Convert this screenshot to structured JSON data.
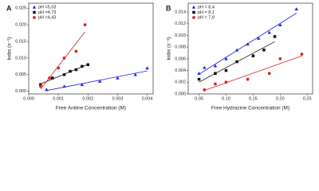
{
  "chart_data": [
    {
      "type": "scatter",
      "panel_label": "A",
      "x_label": "Free Aniline Concentration (M)",
      "y_label": "kobs (s⁻¹)",
      "xlim": [
        0,
        0.0042
      ],
      "ylim": [
        -0.0008,
        0.0265
      ],
      "xticks": [
        {
          "value": 0,
          "label": "0.000"
        },
        0.001,
        0.002,
        0.003,
        0.004
      ],
      "yticks": [
        {
          "value": 0,
          "label": "0.000"
        },
        0.005,
        {
          "value": 0.01,
          "label": "0.010"
        },
        0.015,
        {
          "value": 0.02,
          "label": "0.020"
        },
        0.025
      ],
      "series": [
        {
          "name": "pH =5,03",
          "color": "#2222dd",
          "marker": "triangle",
          "x": [
            0.0006,
            0.0012,
            0.0018,
            0.0024,
            0.003,
            0.0036,
            0.004
          ],
          "values": [
            0.0005,
            0.0015,
            0.002,
            0.003,
            0.004,
            0.005,
            0.007
          ]
        },
        {
          "name": "pH =4,73",
          "color": "#111111",
          "marker": "square",
          "x": [
            0.0004,
            0.0008,
            0.0012,
            0.0014,
            0.0016,
            0.0018,
            0.002
          ],
          "values": [
            0.002,
            0.004,
            0.005,
            0.006,
            0.0065,
            0.0075,
            0.008
          ]
        },
        {
          "name": "pH =4,43",
          "color": "#e02020",
          "marker": "circle",
          "x": [
            0.0004,
            0.0007,
            0.001,
            0.0012,
            0.0016,
            0.0019
          ],
          "values": [
            0.0015,
            0.004,
            0.007,
            0.01,
            0.012,
            0.02
          ]
        }
      ]
    },
    {
      "type": "scatter",
      "panel_label": "B",
      "x_label": "Free Hydrazine Concentration (M)",
      "y_label": "kobs (s⁻¹)",
      "xlim": [
        0.03,
        0.26
      ],
      "ylim": [
        0,
        0.0155
      ],
      "xticks": [
        0.05,
        {
          "value": 0.1,
          "label": "0.10"
        },
        0.15,
        {
          "value": 0.2,
          "label": "0.20"
        },
        0.25
      ],
      "yticks": [
        {
          "value": 0,
          "label": "0.000"
        },
        0.002,
        0.004,
        0.006,
        0.008,
        {
          "value": 0.01,
          "label": "0.010"
        },
        0.012,
        0.014
      ],
      "series": [
        {
          "name": "pH = 8,4",
          "color": "#2222dd",
          "marker": "triangle",
          "x": [
            0.05,
            0.06,
            0.08,
            0.1,
            0.12,
            0.14,
            0.16,
            0.18,
            0.2,
            0.23
          ],
          "values": [
            0.0035,
            0.0045,
            0.0048,
            0.006,
            0.0075,
            0.0085,
            0.0095,
            0.0105,
            0.0118,
            0.0145
          ]
        },
        {
          "name": "pH = 8,1",
          "color": "#111111",
          "marker": "square",
          "x": [
            0.05,
            0.08,
            0.1,
            0.12,
            0.15,
            0.17,
            0.19
          ],
          "values": [
            0.0025,
            0.0035,
            0.004,
            0.0055,
            0.0065,
            0.0075,
            0.0098
          ]
        },
        {
          "name": "pH = 7,8",
          "color": "#e02020",
          "marker": "circle",
          "x": [
            0.06,
            0.08,
            0.1,
            0.14,
            0.18,
            0.2,
            0.24
          ],
          "values": [
            0.0007,
            0.0017,
            0.002,
            0.0025,
            0.0035,
            0.006,
            0.0068
          ]
        }
      ]
    }
  ]
}
